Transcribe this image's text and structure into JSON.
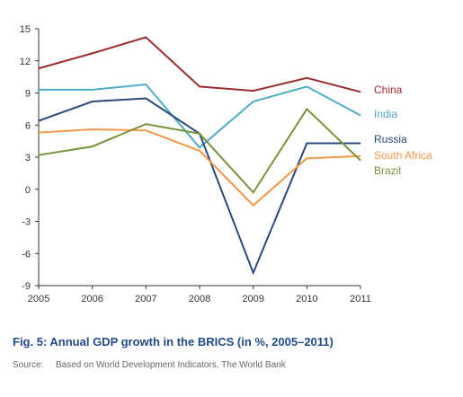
{
  "chart_data": {
    "type": "line",
    "x": [
      "2005",
      "2006",
      "2007",
      "2008",
      "2009",
      "2010",
      "2011"
    ],
    "ylim": [
      -9,
      15
    ],
    "yticks": [
      "15",
      "12",
      "9",
      "6",
      "3",
      "0",
      "-3",
      "-6",
      "-9"
    ],
    "series": [
      {
        "name": "China",
        "color": "#9b2d30",
        "values": [
          11.3,
          12.7,
          14.2,
          9.6,
          9.2,
          10.4,
          9.1
        ]
      },
      {
        "name": "India",
        "color": "#4bacc6",
        "values": [
          9.3,
          9.3,
          9.8,
          3.9,
          8.2,
          9.6,
          6.9
        ]
      },
      {
        "name": "Russia",
        "color": "#2a4a7b",
        "values": [
          6.4,
          8.2,
          8.5,
          5.2,
          -7.8,
          4.3,
          4.3
        ]
      },
      {
        "name": "South Africa",
        "color": "#f79646",
        "values": [
          5.3,
          5.6,
          5.5,
          3.6,
          -1.5,
          2.9,
          3.1
        ]
      },
      {
        "name": "Brazil",
        "color": "#77933c",
        "values": [
          3.2,
          4.0,
          6.1,
          5.2,
          -0.3,
          7.5,
          2.7
        ]
      }
    ],
    "legend": "right, labels at line ends",
    "grid": false,
    "title": "Fig. 5:  Annual GDP growth in the BRICS (in %, 2005–2011)"
  },
  "caption": {
    "title": "Fig. 5:  Annual GDP growth in the BRICS (in %, 2005–2011)",
    "source_label": "Source:",
    "source_text": "Based on World Development Indicators, The World Bank"
  },
  "colors": {
    "axis": "#333333",
    "caption": "#1f4a86"
  }
}
